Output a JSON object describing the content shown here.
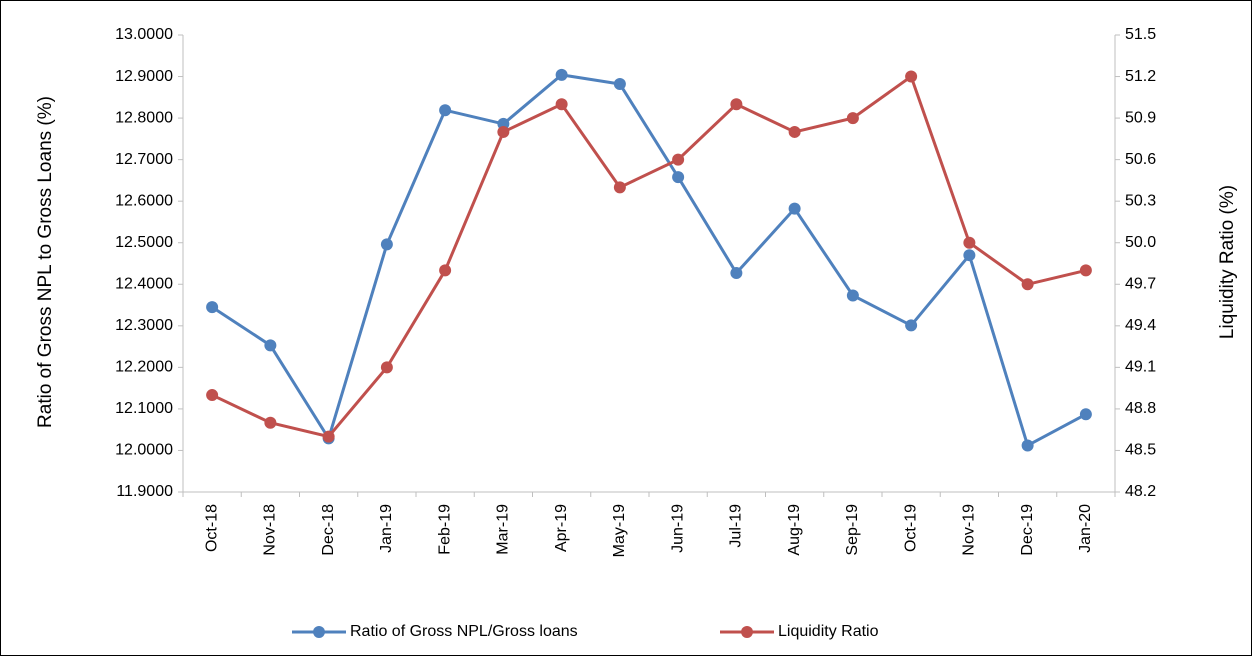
{
  "chart_data": {
    "type": "line",
    "categories": [
      "Oct-18",
      "Nov-18",
      "Dec-18",
      "Jan-19",
      "Feb-19",
      "Mar-19",
      "Apr-19",
      "May-19",
      "Jun-19",
      "Jul-19",
      "Aug-19",
      "Sep-19",
      "Oct-19",
      "Nov-19",
      "Dec-19",
      "Jan-20"
    ],
    "ylabel": "Ratio of Gross NPL to Gross Loans (%)",
    "y2label": "Liquidity Ratio (%)",
    "ylim": [
      11.9,
      13.0
    ],
    "yticks": [
      {
        "value": 11.9,
        "label": "11.9000"
      },
      {
        "value": 12.0,
        "label": "12.0000"
      },
      {
        "value": 12.1,
        "label": "12.1000"
      },
      {
        "value": 12.2,
        "label": "12.2000"
      },
      {
        "value": 12.3,
        "label": "12.3000"
      },
      {
        "value": 12.4,
        "label": "12.4000"
      },
      {
        "value": 12.5,
        "label": "12.5000"
      },
      {
        "value": 12.6,
        "label": "12.6000"
      },
      {
        "value": 12.7,
        "label": "12.7000"
      },
      {
        "value": 12.8,
        "label": "12.8000"
      },
      {
        "value": 12.9,
        "label": "12.9000"
      },
      {
        "value": 13.0,
        "label": "13.0000"
      }
    ],
    "y2lim": [
      48.2,
      51.5
    ],
    "y2ticks": [
      48.2,
      48.5,
      48.8,
      49.1,
      49.4,
      49.7,
      {
        "value": 50,
        "label": "50.0"
      },
      50.3,
      50.6,
      50.9,
      51.2,
      51.5
    ],
    "legend": "bottom",
    "series": [
      {
        "name": "Ratio of Gross NPL/Gross loans",
        "color": "#4f81bd",
        "values": [
          12.345,
          12.253,
          12.029,
          12.496,
          12.819,
          12.786,
          12.904,
          12.882,
          12.658,
          12.427,
          12.582,
          12.373,
          12.301,
          12.47,
          12.012,
          12.087
        ]
      },
      {
        "name": "Liquidity Ratio",
        "color": "#c0504d",
        "axis": "y2",
        "values": [
          48.9,
          48.7,
          48.6,
          49.1,
          49.8,
          50.8,
          51.0,
          50.4,
          50.6,
          51.0,
          50.8,
          50.9,
          51.2,
          50.0,
          49.7,
          49.8
        ]
      }
    ]
  }
}
